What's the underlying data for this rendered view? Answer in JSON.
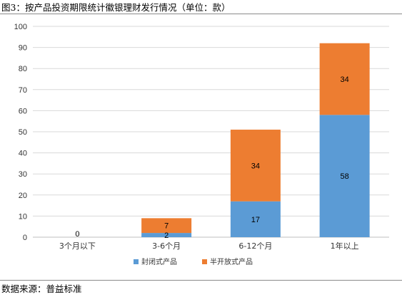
{
  "figure": {
    "title": "图3：按产品投资期限统计徽银理财发行情况（单位：款）",
    "source": "数据来源：普益标准"
  },
  "chart_data": {
    "type": "bar",
    "stacked": true,
    "categories": [
      "3个月以下",
      "3-6个月",
      "6-12个月",
      "1年以上"
    ],
    "series": [
      {
        "name": "封闭式产品",
        "color": "#5b9bd5",
        "values": [
          0,
          2,
          17,
          58
        ]
      },
      {
        "name": "半开放式产品",
        "color": "#ed7d31",
        "values": [
          0,
          7,
          34,
          34
        ]
      }
    ],
    "data_labels": [
      [
        "0",
        "2",
        "17",
        "58"
      ],
      [
        "",
        "7",
        "34",
        "34"
      ]
    ],
    "y_ticks": [
      0,
      10,
      20,
      30,
      40,
      50,
      60,
      70,
      80,
      90,
      100
    ],
    "ylim": [
      0,
      100
    ],
    "grid": true,
    "legend": "bottom",
    "title": "",
    "xlabel": "",
    "ylabel": ""
  }
}
